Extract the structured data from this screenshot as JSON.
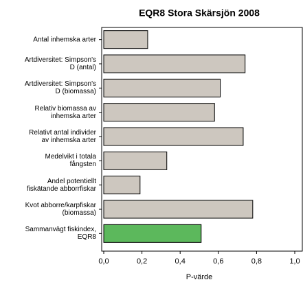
{
  "chart_data": {
    "type": "barh",
    "title": "EQR8 Stora Skärsjön 2008",
    "categories": [
      "Antal inhemska arter",
      "Artdiversitet: Simpson's\nD (antal)",
      "Artdiversitet: Simpson's\nD (biomassa)",
      "Relativ biomassa av\ninhemska arter",
      "Relativt antal individer\nav inhemska arter",
      "Medelvikt i totala\nfångsten",
      "Andel potentiellt\nfiskätande abborrfiskar",
      "Kvot abborre/karpfiskar\n(biomassa)",
      "Sammanvägt fiskindex,\nEQR8"
    ],
    "values": [
      0.23,
      0.74,
      0.61,
      0.58,
      0.73,
      0.33,
      0.19,
      0.78,
      0.51
    ],
    "colors": [
      "#cdc7bf",
      "#cdc7bf",
      "#cdc7bf",
      "#cdc7bf",
      "#cdc7bf",
      "#cdc7bf",
      "#cdc7bf",
      "#cdc7bf",
      "#5cb85c"
    ],
    "xlabel": "P-värde",
    "xlim": [
      0,
      1
    ],
    "xticks": [
      {
        "value": 0,
        "label": "0,0"
      },
      {
        "value": 0.2,
        "label": "0,2"
      },
      {
        "value": 0.4,
        "label": "0,4"
      },
      {
        "value": 0.6,
        "label": "0,6"
      },
      {
        "value": 0.8,
        "label": "0,8"
      },
      {
        "value": 1,
        "label": "1,0"
      }
    ]
  }
}
